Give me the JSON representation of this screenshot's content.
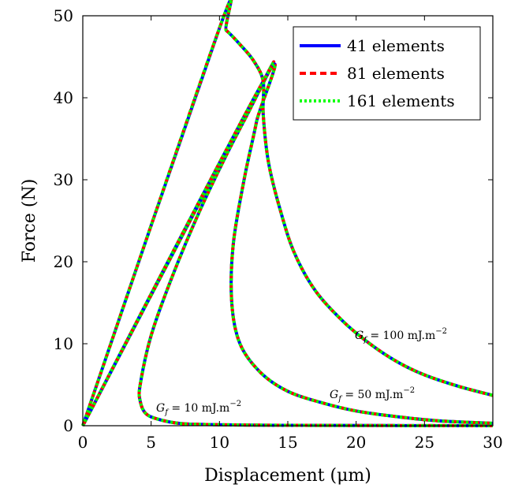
{
  "chart_data": {
    "type": "line",
    "xlabel": "Displacement (μm)",
    "ylabel": "Force (N)",
    "xlim": [
      0,
      30
    ],
    "ylim": [
      0,
      50
    ],
    "xticks": [
      0,
      5,
      10,
      15,
      20,
      25,
      30
    ],
    "yticks": [
      0,
      10,
      20,
      30,
      40,
      50
    ],
    "grid": false,
    "legend_position": "top-right",
    "series": [
      {
        "name": "41 elements",
        "color": "#0000ff",
        "style": "solid"
      },
      {
        "name": "81 elements",
        "color": "#ff0000",
        "style": "dashed"
      },
      {
        "name": "161 elements",
        "color": "#00ff00",
        "style": "dotted"
      }
    ],
    "curves": [
      {
        "label": "G_f = 10 mJ.m^-2",
        "annotation": "G",
        "annotation_sub": "f",
        "annotation_rest": " = 10 mJ.m",
        "annotation_sup": "−2",
        "points": [
          [
            0,
            0
          ],
          [
            13.2,
            42
          ],
          [
            12.2,
            38.5
          ],
          [
            10.5,
            33
          ],
          [
            8.5,
            26
          ],
          [
            6.5,
            18
          ],
          [
            5,
            11
          ],
          [
            4.2,
            5
          ],
          [
            4.2,
            3
          ],
          [
            4.6,
            1.5
          ],
          [
            5.5,
            0.8
          ],
          [
            7,
            0.3
          ],
          [
            9,
            0.15
          ],
          [
            15,
            0.05
          ],
          [
            30,
            0
          ]
        ]
      },
      {
        "label": "G_f = 50 mJ.m^-2",
        "annotation": "G",
        "annotation_sub": "f",
        "annotation_rest": " = 50 mJ.m",
        "annotation_sup": "−2",
        "points": [
          [
            0,
            0
          ],
          [
            13.2,
            42
          ],
          [
            12.7,
            37
          ],
          [
            11.8,
            30
          ],
          [
            11,
            22
          ],
          [
            10.9,
            15
          ],
          [
            11.5,
            10
          ],
          [
            13,
            6.5
          ],
          [
            15,
            4.2
          ],
          [
            17.5,
            2.8
          ],
          [
            20,
            1.8
          ],
          [
            23,
            1.1
          ],
          [
            26,
            0.6
          ],
          [
            30,
            0.3
          ]
        ]
      },
      {
        "label": "G_f = 100 mJ.m^-2",
        "annotation": "G",
        "annotation_sub": "f",
        "annotation_rest": " = 100 mJ.m",
        "annotation_sup": "−2",
        "points": [
          [
            0,
            0
          ],
          [
            10,
            48.5
          ],
          [
            10.5,
            48.2
          ],
          [
            11.5,
            46.5
          ],
          [
            12.5,
            44.5
          ],
          [
            13.2,
            42
          ],
          [
            13.2,
            38
          ],
          [
            13.6,
            32
          ],
          [
            14.5,
            26
          ],
          [
            15.5,
            21
          ],
          [
            17,
            16.5
          ],
          [
            19,
            12.8
          ],
          [
            21,
            10
          ],
          [
            23,
            7.8
          ],
          [
            25,
            6.2
          ],
          [
            27.5,
            4.8
          ],
          [
            30,
            3.7
          ]
        ]
      }
    ]
  }
}
